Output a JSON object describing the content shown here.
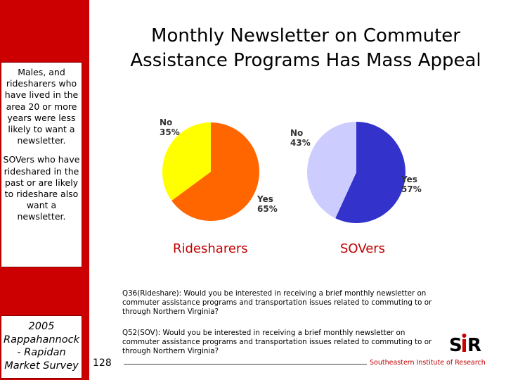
{
  "title_lines": [
    "Monthly Newsletter on Commuter",
    "Assistance Programs Has Mass Appeal"
  ],
  "sidebar": {
    "note1": "Males, and ridesharers who have lived in the area 20 or more years were less likely to want a newsletter.",
    "note2": "SOVers who have rideshared in the past or are likely to rideshare also want a newsletter.",
    "survey_lines": [
      "2005",
      "Rappahannock",
      "- Rapidan",
      "Market Survey"
    ]
  },
  "chart_data": [
    {
      "type": "pie",
      "title": "Ridesharers",
      "slices": [
        {
          "label": "Yes",
          "value": 65,
          "value_text": "65%",
          "color": "#ff6600"
        },
        {
          "label": "No",
          "value": 35,
          "value_text": "35%",
          "color": "#ffff00"
        }
      ]
    },
    {
      "type": "pie",
      "title": "SOVers",
      "slices": [
        {
          "label": "Yes",
          "value": 57,
          "value_text": "57%",
          "color": "#3333cc"
        },
        {
          "label": "No",
          "value": 43,
          "value_text": "43%",
          "color": "#ccccff"
        }
      ]
    }
  ],
  "questions": {
    "q1": "Q36(Rideshare): Would you be interested in receiving a brief monthly newsletter on commuter assistance programs and transportation issues related to commuting to or through Northern Virginia?",
    "q2": "Q52(SOV): Would you be interested in receiving a brief monthly newsletter on commuter assistance programs and transportation issues related to commuting to or through Northern Virginia?"
  },
  "footer": {
    "page_number": "128",
    "organization": "Southeastern Institute of Research",
    "logo_text": "SIR"
  },
  "colors": {
    "accent_red": "#cc0000",
    "label_red": "#c00000"
  }
}
